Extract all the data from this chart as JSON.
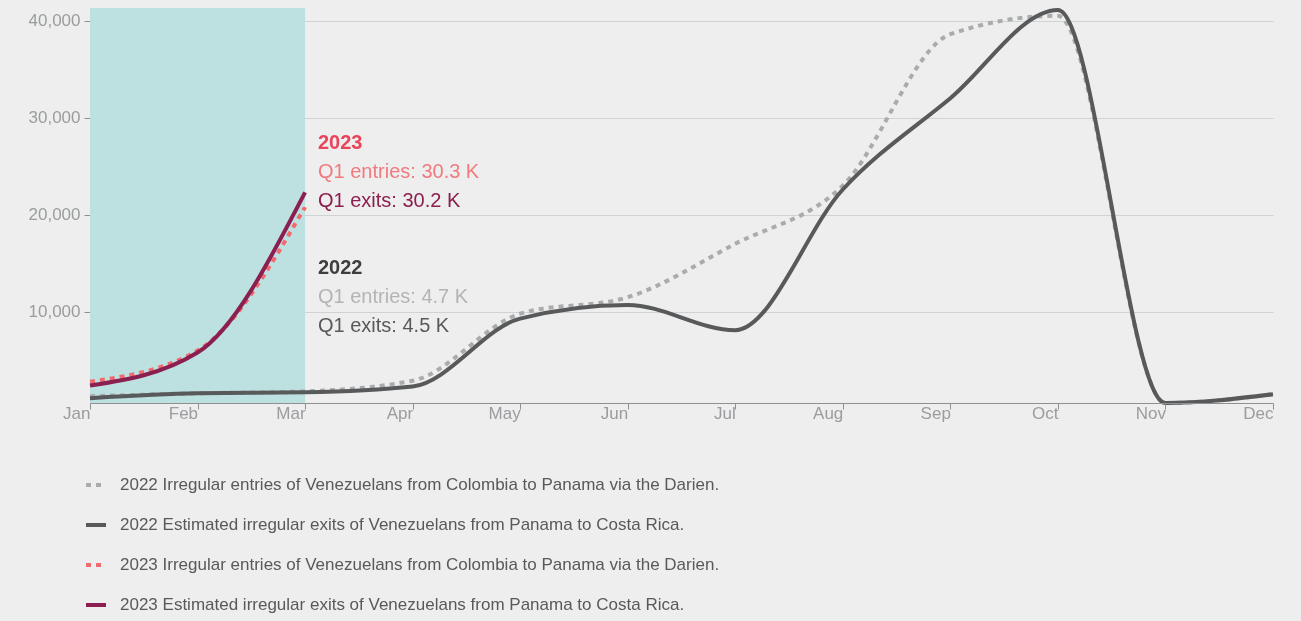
{
  "chart_data": {
    "type": "line",
    "categories": [
      "Jan",
      "Feb",
      "Mar",
      "Apr",
      "May",
      "Jun",
      "Jul",
      "Aug",
      "Sep",
      "Oct",
      "Nov",
      "Dec"
    ],
    "series": [
      {
        "name": "2022 Irregular entries of Venezuelans from Colombia to Panama via the Darien.",
        "color": "#aaabad",
        "line_style": "dotted",
        "values": [
          1300,
          1600,
          1800,
          2900,
          9800,
          11500,
          17000,
          23000,
          38600,
          40500,
          600,
          1500
        ]
      },
      {
        "name": "2022 Estimated irregular exits of Venezuelans from Panama to Costa Rica.",
        "color": "#58595b",
        "line_style": "solid",
        "values": [
          1100,
          1600,
          1700,
          2300,
          9300,
          10700,
          8100,
          22600,
          32000,
          41100,
          600,
          1500
        ]
      },
      {
        "name": "2023 Irregular entries of Venezuelans from Colombia to Panama via the Darien.",
        "color": "#f06a6f",
        "line_style": "dotted",
        "values": [
          2800,
          6000,
          20800,
          null,
          null,
          null,
          null,
          null,
          null,
          null,
          null,
          null
        ]
      },
      {
        "name": "2023 Estimated irregular exits of Venezuelans from Panama to Costa Rica.",
        "color": "#8b1f4f",
        "line_style": "solid",
        "values": [
          2400,
          5800,
          22300,
          null,
          null,
          null,
          null,
          null,
          null,
          null,
          null,
          null
        ]
      }
    ],
    "ylim": [
      600,
      41300
    ],
    "yticks": [
      {
        "value": 10000,
        "label": "10,000"
      },
      {
        "value": 20000,
        "label": "20,000"
      },
      {
        "value": 30000,
        "label": "30,000"
      },
      {
        "value": 40000,
        "label": "40,000"
      }
    ],
    "grid": "y",
    "legend": "bottom",
    "bands": [
      {
        "axis": "x",
        "from": "Jan",
        "to": "Mar",
        "color": "#bde0e0"
      }
    ],
    "annotations": [
      "2023",
      "Q1 entries: 30.3 K",
      "Q1 exits: 30.2 K",
      "2022",
      "Q1 entries: 4.7 K",
      "Q1 exits: 4.5 K"
    ]
  }
}
